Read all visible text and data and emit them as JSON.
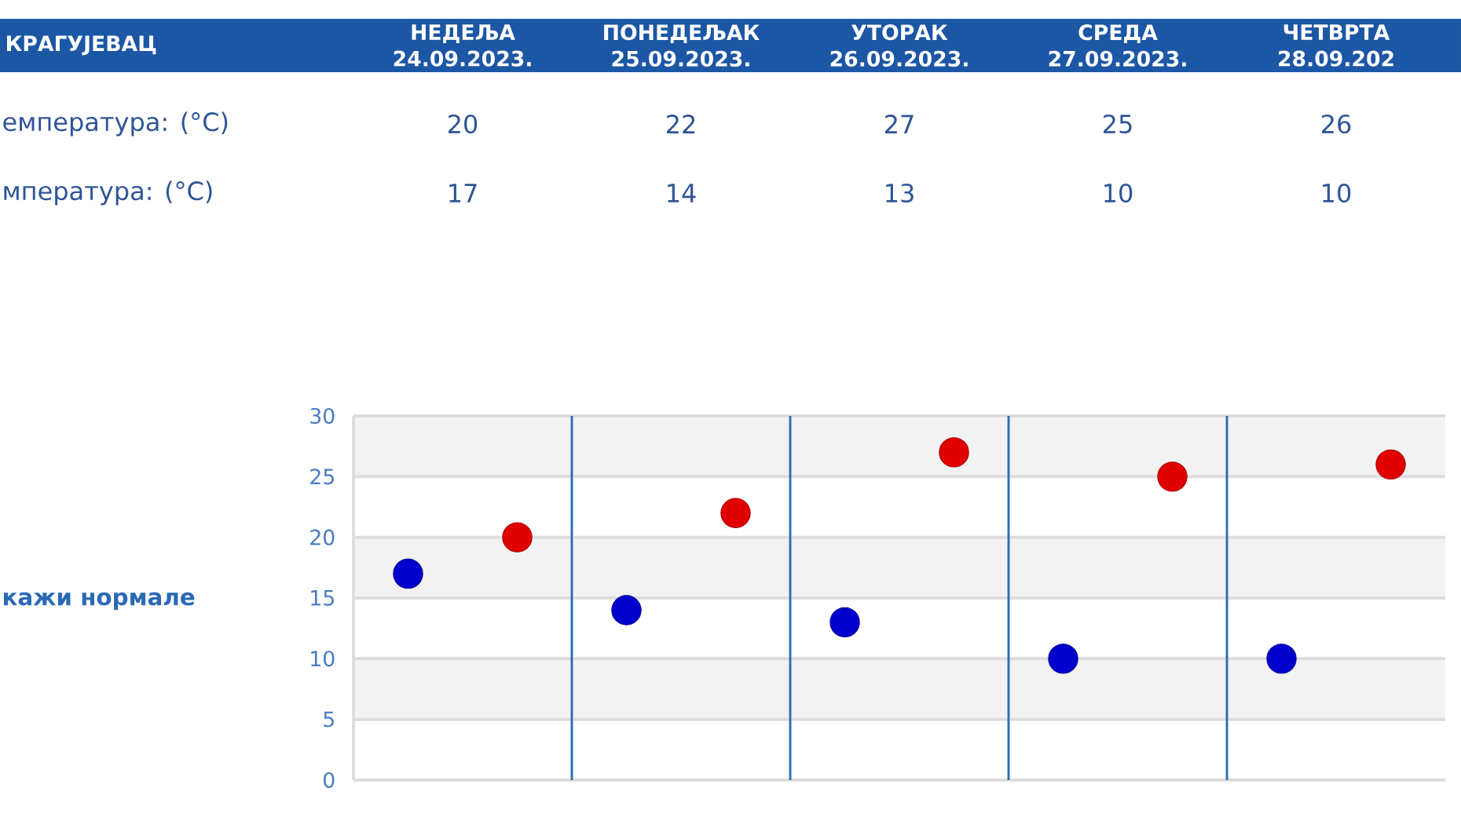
{
  "chart_data": {
    "type": "scatter",
    "title": "КРАГУЈЕВАЦ",
    "categories": [
      null,
      null,
      null,
      null,
      null
    ],
    "series": [
      {
        "color": "#e00000",
        "values": [
          20,
          22,
          27,
          25,
          26
        ]
      },
      {
        "color": "#0000cc",
        "values": [
          17,
          14,
          13,
          10,
          10
        ]
      }
    ],
    "annotations": [
      "НЕДЕЉА 24.09.2023.",
      "ПОНЕДЕЉАК 25.09.2023.",
      "УТОРАК 26.09.2023.",
      "СРЕДА 27.09.2023.",
      "ЧЕТВРТА 28.09.202",
      "емпература: (°C)",
      "мпература: (°C)",
      "кажи нормале"
    ],
    "ylim": [
      0,
      30
    ],
    "yticks": [
      0,
      5,
      10,
      15,
      20,
      25,
      30
    ],
    "grid": true,
    "marker": "circle",
    "data_labels": true,
    "bands": [
      {
        "axis": "y",
        "from": 5,
        "to": 10,
        "color": "#f2f2f2"
      },
      {
        "axis": "y",
        "from": 15,
        "to": 20,
        "color": "#f2f2f2"
      },
      {
        "axis": "y",
        "from": 25,
        "to": 30,
        "color": "#f2f2f2"
      }
    ]
  }
}
